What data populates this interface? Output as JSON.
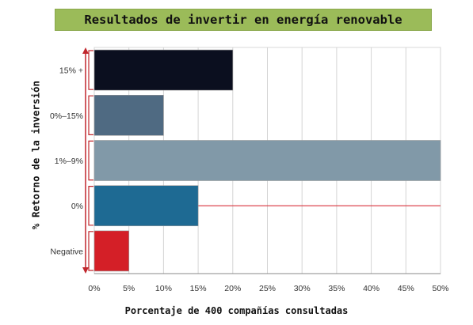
{
  "chart_data": {
    "type": "bar",
    "orientation": "horizontal",
    "title": "Resultados de invertir en energía renovable",
    "xlabel": "Porcentaje de 400 compañías consultadas",
    "ylabel": "% Retorno de la inversión",
    "categories": [
      "15% +",
      "0%–15%",
      "1%–9%",
      "0%",
      "Negative"
    ],
    "values": [
      20,
      10,
      50,
      15,
      5
    ],
    "colors": [
      "#0b0f1f",
      "#4f6a82",
      "#8199a8",
      "#1e6a93",
      "#d41f27"
    ],
    "xlim": [
      0,
      50
    ],
    "xticks": [
      "0%",
      "5%",
      "10%",
      "15%",
      "20%",
      "25%",
      "30%",
      "35%",
      "40%",
      "45%",
      "50%"
    ],
    "xtick_values": [
      0,
      5,
      10,
      15,
      20,
      25,
      30,
      35,
      40,
      45,
      50
    ],
    "grid": "vertical",
    "reference_line": {
      "category": "0%",
      "color": "#d9333b"
    },
    "axis_arrow_color": "#c0272d"
  }
}
